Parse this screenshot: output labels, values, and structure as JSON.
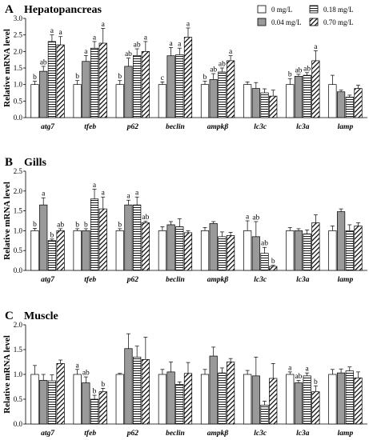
{
  "legend": {
    "entries": [
      {
        "label": "0 mg/L",
        "pattern": "white"
      },
      {
        "label": "0.18 mg/L",
        "pattern": "hlines"
      },
      {
        "label": "0.04 mg/L",
        "pattern": "gray"
      },
      {
        "label": "0.70 mg/L",
        "pattern": "diag"
      }
    ]
  },
  "colors": {
    "gray_bar": "#9a9a9a",
    "stroke": "#000000",
    "background": "#ffffff"
  },
  "chart_data": [
    {
      "type": "bar",
      "panel_label": "A",
      "title": "Hepatopancreas",
      "ylabel": "Relative mRNA level",
      "ylim": [
        0,
        3.0
      ],
      "yticks": [
        "0.0",
        "0.5",
        "1.0",
        "1.5",
        "2.0",
        "2.5",
        "3.0"
      ],
      "categories": [
        "atg7",
        "tfeb",
        "p62",
        "beclin",
        "ampkβ",
        "lc3c",
        "lc3a",
        "lamp"
      ],
      "series": [
        {
          "name": "0 mg/L",
          "values": [
            1.0,
            1.0,
            1.0,
            1.0,
            1.0,
            1.0,
            1.0,
            1.0
          ],
          "errors": [
            0.1,
            0.12,
            0.12,
            0.08,
            0.1,
            0.08,
            0.18,
            0.28
          ],
          "labels": [
            "b",
            "b",
            "b",
            "c",
            "b",
            "",
            "b",
            ""
          ]
        },
        {
          "name": "0.04 mg/L",
          "values": [
            1.4,
            1.7,
            1.55,
            1.87,
            1.15,
            0.88,
            1.25,
            0.78
          ],
          "errors": [
            0.15,
            0.18,
            0.25,
            0.25,
            0.18,
            0.18,
            0.06,
            0.05
          ],
          "labels": [
            "ab",
            "a",
            "ab",
            "a",
            "ab",
            "",
            "ab",
            ""
          ]
        },
        {
          "name": "0.18 mg/L",
          "values": [
            2.3,
            2.1,
            1.88,
            1.9,
            1.38,
            0.75,
            1.28,
            0.62
          ],
          "errors": [
            0.2,
            0.2,
            0.2,
            0.2,
            0.12,
            0.12,
            0.08,
            0.06
          ],
          "labels": [
            "a",
            "a",
            "ab",
            "a",
            "ab",
            "",
            "ab",
            ""
          ]
        },
        {
          "name": "0.70 mg/L",
          "values": [
            2.2,
            2.25,
            2.0,
            2.43,
            1.72,
            0.65,
            1.72,
            0.88
          ],
          "errors": [
            0.25,
            0.45,
            0.3,
            0.28,
            0.15,
            0.18,
            0.3,
            0.1
          ],
          "labels": [
            "a",
            "a",
            "a",
            "a",
            "a",
            "",
            "a",
            ""
          ]
        }
      ]
    },
    {
      "type": "bar",
      "panel_label": "B",
      "title": "Gills",
      "ylabel": "Relative mRNA level",
      "ylim": [
        0,
        2.5
      ],
      "yticks": [
        "0.0",
        "0.5",
        "1.0",
        "1.5",
        "2.0",
        "2.5"
      ],
      "categories": [
        "atg7",
        "tfeb",
        "p62",
        "beclin",
        "ampkβ",
        "lc3c",
        "lc3a",
        "lamp"
      ],
      "series": [
        {
          "name": "0 mg/L",
          "values": [
            1.0,
            1.0,
            1.0,
            1.0,
            1.0,
            1.0,
            1.0,
            1.0
          ],
          "errors": [
            0.06,
            0.05,
            0.05,
            0.1,
            0.08,
            0.25,
            0.08,
            0.12
          ],
          "labels": [
            "b",
            "b",
            "b",
            "",
            "",
            "a",
            "",
            ""
          ]
        },
        {
          "name": "0.04 mg/L",
          "values": [
            1.65,
            1.0,
            1.65,
            1.15,
            1.18,
            0.85,
            1.0,
            1.48
          ],
          "errors": [
            0.18,
            0.05,
            0.12,
            0.08,
            0.05,
            0.38,
            0.05,
            0.07
          ],
          "labels": [
            "a",
            "b",
            "a",
            "",
            "",
            "ab",
            "",
            ""
          ]
        },
        {
          "name": "0.18 mg/L",
          "values": [
            0.75,
            1.8,
            1.65,
            1.1,
            0.85,
            0.43,
            0.92,
            1.0
          ],
          "errors": [
            0.04,
            0.25,
            0.2,
            0.2,
            0.12,
            0.15,
            0.1,
            0.15
          ],
          "labels": [
            "b",
            "a",
            "a",
            "",
            "",
            "ab",
            "",
            ""
          ]
        },
        {
          "name": "0.70 mg/L",
          "values": [
            1.0,
            1.55,
            1.2,
            0.95,
            0.88,
            0.1,
            1.2,
            1.12
          ],
          "errors": [
            0.05,
            0.3,
            0.04,
            0.05,
            0.08,
            0.03,
            0.2,
            0.08
          ],
          "labels": [
            "ab",
            "a",
            "ab",
            "",
            "",
            "b",
            "",
            ""
          ]
        }
      ]
    },
    {
      "type": "bar",
      "panel_label": "C",
      "title": "Muscle",
      "ylabel": "Relative mRNA level",
      "ylim": [
        0,
        2.0
      ],
      "yticks": [
        "0.0",
        "0.5",
        "1.0",
        "1.5",
        "2.0"
      ],
      "categories": [
        "atg7",
        "tfeb",
        "p62",
        "beclin",
        "ampkβ",
        "lc3c",
        "lc3a",
        "lamp"
      ],
      "series": [
        {
          "name": "0 mg/L",
          "values": [
            1.0,
            1.0,
            1.0,
            1.0,
            1.0,
            1.0,
            1.0,
            1.0
          ],
          "errors": [
            0.18,
            0.1,
            0.02,
            0.1,
            0.1,
            0.08,
            0.05,
            0.1
          ],
          "labels": [
            "",
            "a",
            "",
            "",
            "",
            "",
            "a",
            ""
          ]
        },
        {
          "name": "0.04 mg/L",
          "values": [
            0.88,
            0.83,
            1.52,
            1.05,
            1.37,
            0.97,
            0.83,
            1.03
          ],
          "errors": [
            0.12,
            0.12,
            0.3,
            0.2,
            0.18,
            0.38,
            0.05,
            0.08
          ],
          "labels": [
            "",
            "ab",
            "",
            "",
            "",
            "",
            "ab",
            ""
          ]
        },
        {
          "name": "0.18 mg/L",
          "values": [
            0.87,
            0.5,
            1.35,
            0.8,
            1.03,
            0.38,
            0.97,
            1.07
          ],
          "errors": [
            0.12,
            0.08,
            0.22,
            0.05,
            0.1,
            0.08,
            0.06,
            0.08
          ],
          "labels": [
            "",
            "b",
            "",
            "",
            "",
            "",
            "a",
            ""
          ]
        },
        {
          "name": "0.70 mg/L",
          "values": [
            1.22,
            0.65,
            1.3,
            1.02,
            1.25,
            0.92,
            0.65,
            0.93
          ],
          "errors": [
            0.07,
            0.07,
            0.45,
            0.22,
            0.07,
            0.3,
            0.12,
            0.12
          ],
          "labels": [
            "",
            "b",
            "",
            "",
            "",
            "",
            "b",
            ""
          ]
        }
      ]
    }
  ]
}
